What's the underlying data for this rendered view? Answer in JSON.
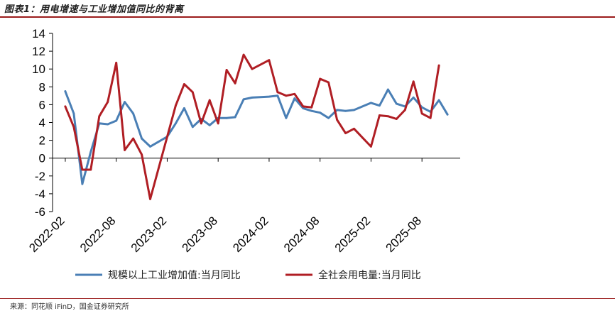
{
  "header": {
    "title": "图表1：用电增速与工业增加值同比的背离"
  },
  "footer": {
    "source": "来源：同花顺 iFinD，国金证券研究所"
  },
  "colors": {
    "industry": "#4a7fb5",
    "power": "#b01e24",
    "accent": "#9b1c1c"
  },
  "chart_data": {
    "type": "line",
    "title": "",
    "xlabel": "",
    "ylabel": "",
    "ylim": [
      -6,
      14
    ],
    "yticks": [
      -6,
      -4,
      -2,
      0,
      2,
      4,
      6,
      8,
      10,
      12,
      14
    ],
    "x": [
      "2022-01",
      "2022-02",
      "2022-03",
      "2022-04",
      "2022-05",
      "2022-06",
      "2022-07",
      "2022-08",
      "2022-09",
      "2022-10",
      "2022-11",
      "2022-12",
      "2023-01",
      "2023-02",
      "2023-03",
      "2023-04",
      "2023-05",
      "2023-06",
      "2023-07",
      "2023-08",
      "2023-09",
      "2023-10",
      "2023-11",
      "2023-12",
      "2024-01",
      "2024-02",
      "2024-03",
      "2024-04",
      "2024-05",
      "2024-06",
      "2024-07",
      "2024-08",
      "2024-09",
      "2024-10",
      "2024-11",
      "2024-12",
      "2025-01",
      "2025-02",
      "2025-03",
      "2025-04",
      "2025-05",
      "2025-06",
      "2025-07",
      "2025-08",
      "2025-09",
      "2025-10",
      "2025-11",
      "2025-12"
    ],
    "xtick_labels": [
      "2022-02",
      "2022-08",
      "2023-02",
      "2023-08",
      "2024-02",
      "2024-08",
      "2025-02",
      "2025-08"
    ],
    "series": [
      {
        "name": "规模以上工业增加值:当月同比",
        "values": [
          null,
          7.5,
          5.0,
          -2.9,
          0.7,
          3.9,
          3.8,
          4.2,
          6.3,
          5.0,
          2.2,
          1.3,
          null,
          2.4,
          3.9,
          5.6,
          3.5,
          4.4,
          3.7,
          4.5,
          4.5,
          4.6,
          6.6,
          6.8,
          null,
          6.9,
          7.0,
          4.5,
          6.7,
          5.6,
          5.3,
          5.1,
          4.5,
          5.4,
          5.3,
          5.4,
          null,
          6.2,
          5.9,
          7.7,
          6.1,
          5.8,
          6.8,
          5.7,
          5.2,
          6.5,
          4.9,
          null
        ]
      },
      {
        "name": "全社会用电量:当月同比",
        "values": [
          null,
          5.8,
          3.5,
          -1.3,
          -1.3,
          4.7,
          6.3,
          10.7,
          0.9,
          2.2,
          0.4,
          -4.6,
          null,
          null,
          5.9,
          8.3,
          7.4,
          3.9,
          6.5,
          3.9,
          9.9,
          8.4,
          11.6,
          10.0,
          null,
          11.0,
          7.4,
          7.0,
          7.2,
          5.8,
          5.7,
          8.9,
          8.5,
          4.3,
          2.8,
          3.3,
          null,
          1.3,
          4.8,
          4.7,
          4.4,
          5.4,
          8.6,
          5.0,
          4.5,
          10.4,
          null,
          null
        ]
      }
    ],
    "legend": "bottom",
    "grid": false
  }
}
